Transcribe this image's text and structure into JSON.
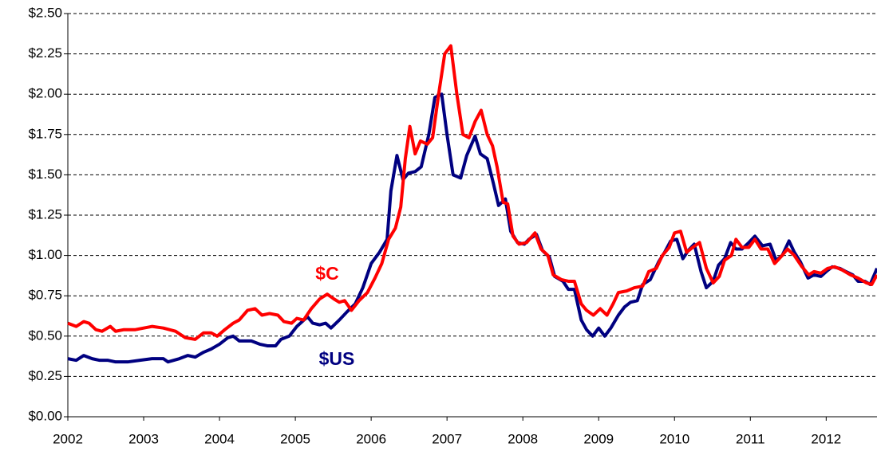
{
  "chart_data": {
    "type": "line",
    "xlim": [
      2002,
      2012.67
    ],
    "xticks": [
      2002,
      2003,
      2004,
      2005,
      2006,
      2007,
      2008,
      2009,
      2010,
      2011,
      2012
    ],
    "ylim": [
      0,
      2.5
    ],
    "yticks": [
      {
        "value": 0,
        "label": "$0.00"
      },
      {
        "value": 0.25,
        "label": "$0.25"
      },
      {
        "value": 0.5,
        "label": "$0.50"
      },
      {
        "value": 0.75,
        "label": "$0.75"
      },
      {
        "value": 1,
        "label": "$1.00"
      },
      {
        "value": 1.25,
        "label": "$1.25"
      },
      {
        "value": 1.5,
        "label": "$1.50"
      },
      {
        "value": 1.75,
        "label": "$1.75"
      },
      {
        "value": 2,
        "label": "$2.00"
      },
      {
        "value": 2.25,
        "label": "$2.25"
      },
      {
        "value": 2.5,
        "label": "$2.50"
      }
    ],
    "grid": true,
    "series": [
      {
        "name": "$US",
        "color": "#000080",
        "x": [
          2002.0,
          2002.11,
          2002.21,
          2002.32,
          2002.42,
          2002.53,
          2002.63,
          2002.79,
          2002.95,
          2003.11,
          2003.26,
          2003.32,
          2003.47,
          2003.58,
          2003.68,
          2003.79,
          2003.89,
          2004.0,
          2004.11,
          2004.18,
          2004.26,
          2004.42,
          2004.53,
          2004.63,
          2004.74,
          2004.81,
          2004.92,
          2005.02,
          2005.16,
          2005.23,
          2005.32,
          2005.4,
          2005.47,
          2005.58,
          2005.68,
          2005.79,
          2005.89,
          2006.0,
          2006.11,
          2006.21,
          2006.26,
          2006.34,
          2006.42,
          2006.49,
          2006.58,
          2006.66,
          2006.76,
          2006.84,
          2006.93,
          2007.0,
          2007.08,
          2007.18,
          2007.26,
          2007.37,
          2007.44,
          2007.53,
          2007.61,
          2007.68,
          2007.77,
          2007.84,
          2007.93,
          2008.02,
          2008.08,
          2008.18,
          2008.26,
          2008.35,
          2008.42,
          2008.53,
          2008.6,
          2008.68,
          2008.77,
          2008.84,
          2008.92,
          2009.0,
          2009.08,
          2009.16,
          2009.26,
          2009.34,
          2009.42,
          2009.51,
          2009.58,
          2009.68,
          2009.79,
          2009.87,
          2009.95,
          2010.03,
          2010.11,
          2010.18,
          2010.26,
          2010.35,
          2010.42,
          2010.51,
          2010.58,
          2010.66,
          2010.74,
          2010.81,
          2010.89,
          2010.98,
          2011.06,
          2011.16,
          2011.26,
          2011.34,
          2011.42,
          2011.51,
          2011.58,
          2011.66,
          2011.76,
          2011.84,
          2011.93,
          2012.0,
          2012.08,
          2012.18,
          2012.26,
          2012.35,
          2012.42,
          2012.51,
          2012.58,
          2012.67
        ],
        "values": [
          0.36,
          0.35,
          0.38,
          0.36,
          0.35,
          0.35,
          0.34,
          0.34,
          0.35,
          0.36,
          0.36,
          0.34,
          0.36,
          0.38,
          0.37,
          0.4,
          0.42,
          0.45,
          0.49,
          0.5,
          0.47,
          0.47,
          0.45,
          0.44,
          0.44,
          0.48,
          0.5,
          0.56,
          0.62,
          0.58,
          0.57,
          0.58,
          0.55,
          0.6,
          0.65,
          0.7,
          0.8,
          0.95,
          1.02,
          1.1,
          1.4,
          1.62,
          1.47,
          1.51,
          1.52,
          1.55,
          1.75,
          1.98,
          2.0,
          1.75,
          1.5,
          1.48,
          1.62,
          1.74,
          1.63,
          1.6,
          1.45,
          1.31,
          1.35,
          1.15,
          1.08,
          1.07,
          1.1,
          1.13,
          1.03,
          0.99,
          0.87,
          0.84,
          0.79,
          0.79,
          0.6,
          0.54,
          0.5,
          0.55,
          0.5,
          0.55,
          0.63,
          0.68,
          0.71,
          0.72,
          0.82,
          0.85,
          0.96,
          1.02,
          1.09,
          1.1,
          0.98,
          1.03,
          1.07,
          0.9,
          0.8,
          0.84,
          0.94,
          0.98,
          1.08,
          1.04,
          1.04,
          1.08,
          1.12,
          1.06,
          1.07,
          0.97,
          1.0,
          1.09,
          1.02,
          0.96,
          0.86,
          0.88,
          0.87,
          0.9,
          0.93,
          0.92,
          0.9,
          0.88,
          0.84,
          0.84,
          0.82,
          0.92
        ]
      },
      {
        "name": "$C",
        "color": "#ff0000",
        "x": [
          2002.0,
          2002.11,
          2002.21,
          2002.28,
          2002.37,
          2002.45,
          2002.56,
          2002.63,
          2002.74,
          2002.89,
          2003.11,
          2003.26,
          2003.42,
          2003.55,
          2003.68,
          2003.79,
          2003.89,
          2003.97,
          2004.07,
          2004.18,
          2004.26,
          2004.37,
          2004.47,
          2004.56,
          2004.66,
          2004.77,
          2004.85,
          2004.95,
          2005.02,
          2005.11,
          2005.21,
          2005.32,
          2005.42,
          2005.51,
          2005.58,
          2005.65,
          2005.74,
          2005.84,
          2005.95,
          2006.05,
          2006.14,
          2006.23,
          2006.32,
          2006.39,
          2006.45,
          2006.51,
          2006.58,
          2006.65,
          2006.74,
          2006.81,
          2006.89,
          2006.97,
          2007.05,
          2007.13,
          2007.21,
          2007.29,
          2007.37,
          2007.45,
          2007.53,
          2007.6,
          2007.66,
          2007.74,
          2007.8,
          2007.87,
          2007.95,
          2008.05,
          2008.16,
          2008.24,
          2008.33,
          2008.4,
          2008.51,
          2008.6,
          2008.68,
          2008.77,
          2008.84,
          2008.93,
          2009.02,
          2009.11,
          2009.19,
          2009.26,
          2009.37,
          2009.47,
          2009.58,
          2009.66,
          2009.76,
          2009.84,
          2009.93,
          2010.0,
          2010.08,
          2010.16,
          2010.24,
          2010.33,
          2010.42,
          2010.51,
          2010.59,
          2010.66,
          2010.75,
          2010.81,
          2010.89,
          2010.98,
          2011.06,
          2011.14,
          2011.23,
          2011.32,
          2011.4,
          2011.49,
          2011.58,
          2011.68,
          2011.77,
          2011.84,
          2011.93,
          2012.02,
          2012.11,
          2012.21,
          2012.32,
          2012.42,
          2012.53,
          2012.6,
          2012.67
        ],
        "values": [
          0.58,
          0.56,
          0.59,
          0.58,
          0.54,
          0.53,
          0.56,
          0.53,
          0.54,
          0.54,
          0.56,
          0.55,
          0.53,
          0.49,
          0.48,
          0.52,
          0.52,
          0.5,
          0.54,
          0.58,
          0.6,
          0.66,
          0.67,
          0.63,
          0.64,
          0.63,
          0.59,
          0.58,
          0.61,
          0.6,
          0.67,
          0.73,
          0.76,
          0.73,
          0.71,
          0.72,
          0.66,
          0.72,
          0.77,
          0.86,
          0.95,
          1.1,
          1.17,
          1.3,
          1.6,
          1.8,
          1.63,
          1.71,
          1.69,
          1.73,
          2.0,
          2.25,
          2.3,
          2.0,
          1.75,
          1.73,
          1.83,
          1.9,
          1.75,
          1.68,
          1.55,
          1.33,
          1.32,
          1.12,
          1.07,
          1.08,
          1.14,
          1.04,
          1.0,
          0.88,
          0.85,
          0.84,
          0.84,
          0.7,
          0.66,
          0.63,
          0.67,
          0.63,
          0.7,
          0.77,
          0.78,
          0.8,
          0.81,
          0.9,
          0.92,
          1.0,
          1.05,
          1.14,
          1.15,
          1.02,
          1.05,
          1.08,
          0.92,
          0.83,
          0.87,
          0.97,
          1.0,
          1.1,
          1.05,
          1.05,
          1.1,
          1.04,
          1.04,
          0.95,
          0.99,
          1.04,
          1.0,
          0.93,
          0.88,
          0.9,
          0.89,
          0.92,
          0.93,
          0.91,
          0.88,
          0.86,
          0.83,
          0.82,
          0.88
        ]
      }
    ]
  }
}
